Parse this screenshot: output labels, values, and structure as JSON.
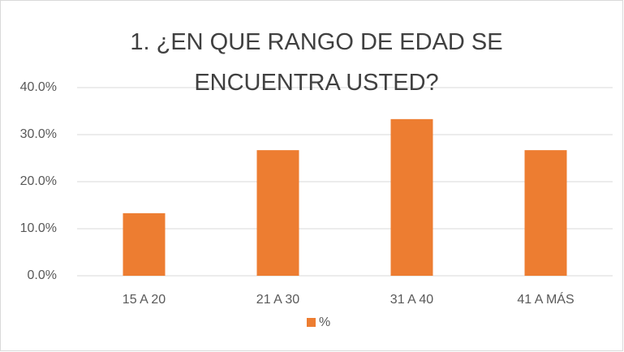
{
  "chart_data": {
    "type": "bar",
    "title": "1. ¿EN QUE RANGO DE EDAD SE ENCUENTRA USTED?",
    "categories": [
      "15 A 20",
      "21 A 30",
      "31 A 40",
      "41 A MÁS"
    ],
    "series": [
      {
        "name": "%",
        "color": "#ed7d31",
        "values": [
          13.3,
          26.7,
          33.3,
          26.7
        ]
      }
    ],
    "ylim": [
      0,
      40
    ],
    "yticks": [
      {
        "value": 0,
        "label": "0.0%"
      },
      {
        "value": 10,
        "label": "10.0%"
      },
      {
        "value": 20,
        "label": "20.0%"
      },
      {
        "value": 30,
        "label": "30.0%"
      },
      {
        "value": 40,
        "label": "40.0%"
      }
    ],
    "grid": true,
    "legend": "bottom"
  }
}
